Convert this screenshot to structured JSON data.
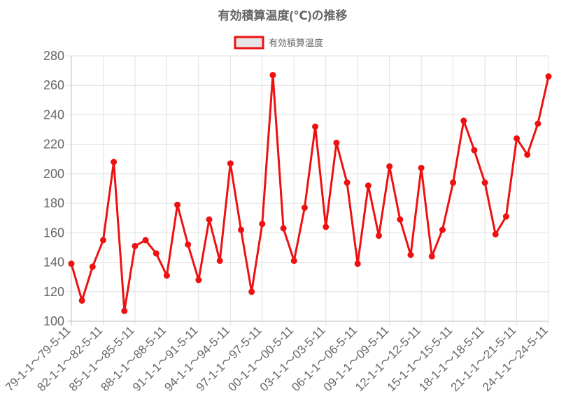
{
  "chart_data": {
    "type": "line",
    "title": "有効積算温度(℃)の推移",
    "legend": {
      "position": "top-center",
      "entries": [
        "有効積算温度"
      ]
    },
    "ylim": [
      100,
      280
    ],
    "yticks": [
      100,
      120,
      140,
      160,
      180,
      200,
      220,
      240,
      260,
      280
    ],
    "grid": true,
    "color": "#ee1111",
    "xtick_labels": [
      "79-1-1～79-5-11",
      "82-1-1～82-5-11",
      "85-1-1～85-5-11",
      "88-1-1～88-5-11",
      "91-1-1～91-5-11",
      "94-1-1～94-5-11",
      "97-1-1～97-5-11",
      "00-1-1～00-5-11",
      "03-1-1～03-5-11",
      "06-1-1～06-5-11",
      "09-1-1～09-5-11",
      "12-1-1～12-5-11",
      "15-1-1～15-5-11",
      "18-1-1～18-5-11",
      "21-1-1～21-5-11",
      "24-1-1～24-5-11"
    ],
    "series": [
      {
        "name": "有効積算温度",
        "values": [
          139,
          114,
          137,
          155,
          208,
          107,
          151,
          155,
          146,
          131,
          179,
          152,
          128,
          169,
          141,
          207,
          162,
          120,
          166,
          267,
          163,
          141,
          177,
          232,
          164,
          221,
          194,
          139,
          192,
          158,
          205,
          169,
          145,
          204,
          144,
          162,
          194,
          236,
          216,
          194,
          159,
          171,
          224,
          213,
          234,
          266
        ]
      }
    ]
  }
}
